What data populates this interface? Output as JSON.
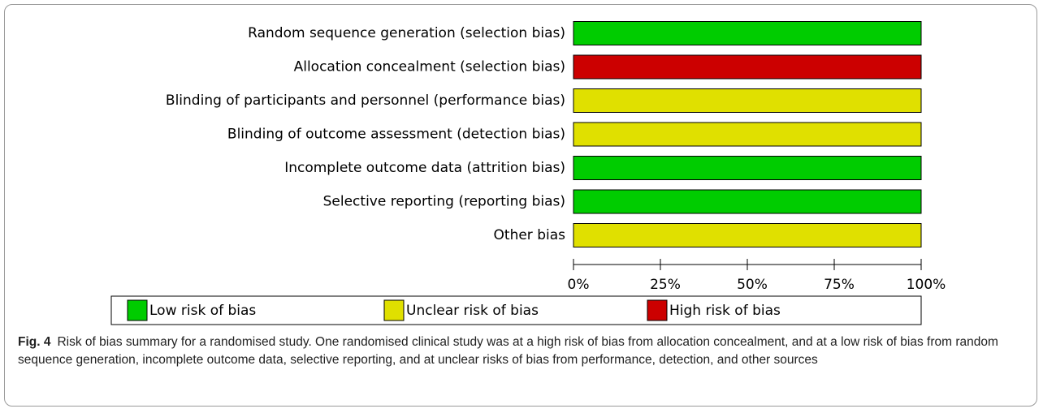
{
  "chart_data": {
    "type": "stacked-bar-horizontal",
    "categories": [
      "Random sequence generation (selection bias)",
      "Allocation concealment (selection bias)",
      "Blinding of participants and personnel (performance bias)",
      "Blinding of outcome assessment (detection bias)",
      "Incomplete outcome data (attrition bias)",
      "Selective reporting (reporting bias)",
      "Other bias"
    ],
    "series": [
      {
        "name": "Low risk of bias",
        "color": "#00cc00",
        "values": [
          100,
          0,
          0,
          0,
          100,
          100,
          0
        ]
      },
      {
        "name": "Unclear risk of bias",
        "color": "#e0e000",
        "values": [
          0,
          0,
          100,
          100,
          0,
          0,
          100
        ]
      },
      {
        "name": "High risk of bias",
        "color": "#cc0000",
        "values": [
          0,
          100,
          0,
          0,
          0,
          0,
          0
        ]
      }
    ],
    "xlim": [
      0,
      100
    ],
    "xticks": [
      {
        "value": 0,
        "label": "0%"
      },
      {
        "value": 25,
        "label": "25%"
      },
      {
        "value": 50,
        "label": "50%"
      },
      {
        "value": 75,
        "label": "75%"
      },
      {
        "value": 100,
        "label": "100%"
      }
    ],
    "caption_label": "Fig. 4",
    "caption": "Risk of bias summary for a randomised study. One randomised clinical study was at a high risk of bias from allocation concealment, and at a low risk of bias from random sequence generation, incomplete outcome data, selective reporting, and at unclear risks of bias from performance, detection, and other sources"
  }
}
